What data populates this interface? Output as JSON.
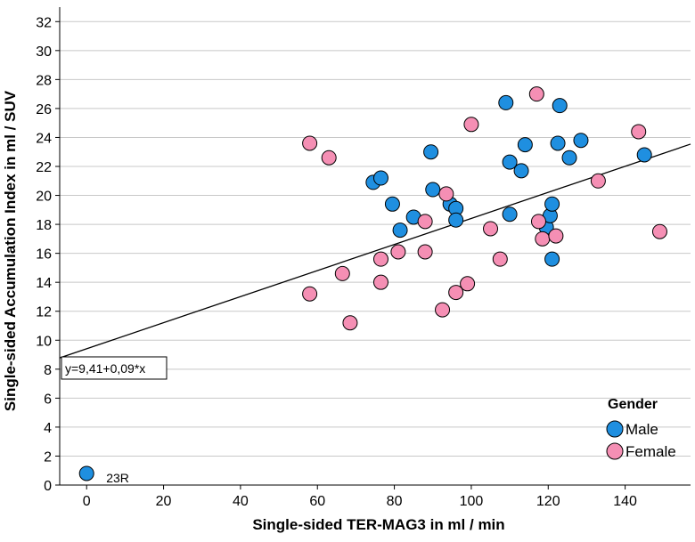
{
  "chart_data": {
    "type": "scatter",
    "xlabel": "Single-sided TER-MAG3 in ml / min",
    "ylabel": "Single-sided Accumulation Index in ml / SUV",
    "xlim": [
      -7,
      157
    ],
    "ylim": [
      0,
      33
    ],
    "x_ticks": [
      0,
      20,
      40,
      60,
      80,
      100,
      120,
      140
    ],
    "y_ticks": [
      0,
      2,
      4,
      6,
      8,
      10,
      12,
      14,
      16,
      18,
      20,
      22,
      24,
      26,
      28,
      30,
      32
    ],
    "x_tick_labels": [
      "0",
      "20",
      "40",
      "60",
      "80",
      "100",
      "120",
      "140"
    ],
    "y_tick_labels": [
      "0",
      "2",
      "4",
      "6",
      "8",
      "10",
      "12",
      "14",
      "16",
      "18",
      "20",
      "22",
      "24",
      "26",
      "28",
      "30",
      "32"
    ],
    "grid": "horizontal",
    "legend": {
      "title": "Gender",
      "position": "bottom-right",
      "entries": [
        {
          "label": "Male",
          "color": "#1f8fe0"
        },
        {
          "label": "Female",
          "color": "#f58fb4"
        }
      ]
    },
    "fit_line": {
      "intercept": 9.41,
      "slope": 0.09,
      "label": "y=9,41+0,09*x"
    },
    "point_label": {
      "text": "23R",
      "x": 0,
      "y": 0.8
    },
    "series": [
      {
        "name": "Male",
        "color": "#1f8fe0",
        "points": [
          [
            0,
            0.8
          ],
          [
            74.5,
            20.9
          ],
          [
            76.5,
            21.2
          ],
          [
            79.5,
            19.4
          ],
          [
            81.5,
            17.6
          ],
          [
            85,
            18.5
          ],
          [
            89.5,
            23.0
          ],
          [
            90,
            20.4
          ],
          [
            94.5,
            19.4
          ],
          [
            96,
            19.1
          ],
          [
            96,
            18.3
          ],
          [
            109,
            26.4
          ],
          [
            110,
            22.3
          ],
          [
            110,
            18.7
          ],
          [
            113,
            21.7
          ],
          [
            114,
            23.5
          ],
          [
            119.5,
            17.8
          ],
          [
            120.5,
            18.6
          ],
          [
            121,
            19.4
          ],
          [
            121,
            15.6
          ],
          [
            122.5,
            23.6
          ],
          [
            123,
            26.2
          ],
          [
            125.5,
            22.6
          ],
          [
            128.5,
            23.8
          ],
          [
            145,
            22.8
          ]
        ]
      },
      {
        "name": "Female",
        "color": "#f58fb4",
        "points": [
          [
            58,
            23.6
          ],
          [
            63,
            22.6
          ],
          [
            58,
            13.2
          ],
          [
            66.5,
            14.6
          ],
          [
            68.5,
            11.2
          ],
          [
            76.5,
            15.6
          ],
          [
            76.5,
            14.0
          ],
          [
            81,
            16.1
          ],
          [
            88,
            16.1
          ],
          [
            88,
            18.2
          ],
          [
            92.5,
            12.1
          ],
          [
            93.5,
            20.1
          ],
          [
            96,
            13.3
          ],
          [
            99,
            13.9
          ],
          [
            100,
            24.9
          ],
          [
            105,
            17.7
          ],
          [
            107.5,
            15.6
          ],
          [
            117,
            27.0
          ],
          [
            117.5,
            18.2
          ],
          [
            118.5,
            17.0
          ],
          [
            122,
            17.2
          ],
          [
            133,
            21.0
          ],
          [
            143.5,
            24.4
          ],
          [
            149,
            17.5
          ]
        ]
      }
    ]
  }
}
